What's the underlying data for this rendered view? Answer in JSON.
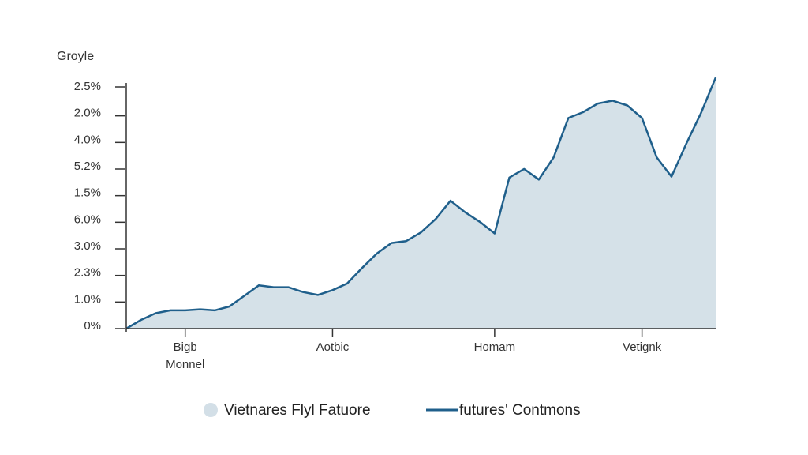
{
  "chart_data": {
    "type": "area",
    "title": "Groyle",
    "y_labels": [
      "2.5%",
      "2.0%",
      "4.0%",
      "5.2%",
      "1.5%",
      "6.0%",
      "3.0%",
      "2.3%",
      "1.0%",
      "0%"
    ],
    "categories": [
      null,
      null,
      null,
      null,
      "Bigb\nMonnel",
      null,
      null,
      null,
      null,
      null,
      null,
      null,
      null,
      null,
      "Aotbic",
      null,
      null,
      null,
      null,
      null,
      null,
      null,
      null,
      null,
      null,
      "Homam",
      null,
      null,
      null,
      null,
      null,
      null,
      null,
      null,
      null,
      "Vetignk",
      null,
      null,
      null,
      null,
      null
    ],
    "ylim": [
      0,
      2.62
    ],
    "series": [
      {
        "name": "Vietnares Flyl Fatuore",
        "color": "#d3dfe7",
        "kind": "area",
        "values": [
          0,
          0.09,
          0.16,
          0.19,
          0.19,
          0.2,
          0.19,
          0.23,
          0.34,
          0.45,
          0.43,
          0.43,
          0.38,
          0.35,
          0.4,
          0.47,
          0.63,
          0.78,
          0.89,
          0.91,
          1.0,
          1.14,
          1.33,
          1.21,
          1.11,
          0.99,
          1.57,
          1.66,
          1.55,
          1.78,
          2.19,
          2.25,
          2.34,
          2.37,
          2.32,
          2.19,
          1.78,
          1.58,
          1.92,
          2.24,
          2.61
        ]
      },
      {
        "name": "futures' Contmons",
        "color": "#1f5f8b",
        "kind": "line",
        "values": [
          0,
          0.09,
          0.16,
          0.19,
          0.19,
          0.2,
          0.19,
          0.23,
          0.34,
          0.45,
          0.43,
          0.43,
          0.38,
          0.35,
          0.4,
          0.47,
          0.63,
          0.78,
          0.89,
          0.91,
          1.0,
          1.14,
          1.33,
          1.21,
          1.11,
          0.99,
          1.57,
          1.66,
          1.55,
          1.78,
          2.19,
          2.25,
          2.34,
          2.37,
          2.32,
          2.19,
          1.78,
          1.58,
          1.92,
          2.24,
          2.61
        ]
      }
    ]
  }
}
